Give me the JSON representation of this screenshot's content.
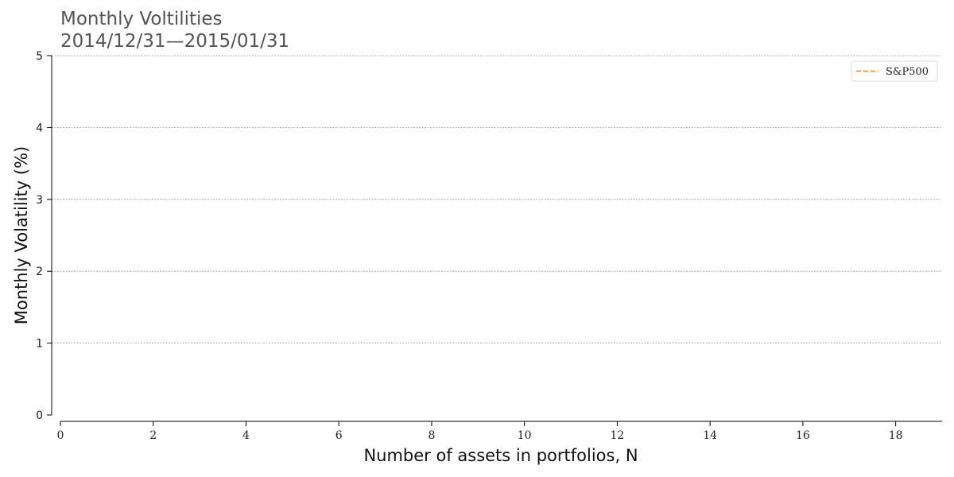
{
  "chart_data": {
    "type": "line",
    "title": "Monthly Voltilities",
    "subtitle": "2014/12/31—2015/01/31",
    "xlabel": "Number of assets in portfolios, N",
    "ylabel": "Monthly Volatility (%)",
    "xlim": [
      0,
      19
    ],
    "ylim": [
      0,
      5
    ],
    "xticks": [
      "0",
      "2",
      "4",
      "6",
      "8",
      "10",
      "12",
      "14",
      "16",
      "18"
    ],
    "yticks": [
      "0",
      "1",
      "2",
      "3",
      "4",
      "5"
    ],
    "grid": "y-dashed",
    "legend_position": "top-right",
    "series": [
      {
        "name": "S&P500",
        "color": "#ff7f0e",
        "line_style": "dashed",
        "x": [],
        "y": []
      }
    ]
  }
}
